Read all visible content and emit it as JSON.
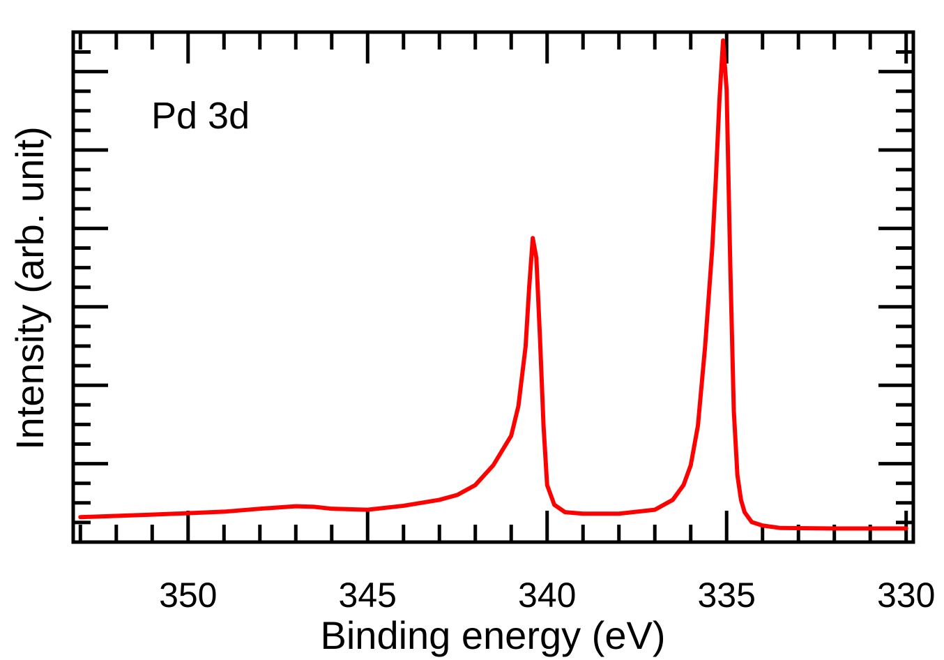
{
  "chart_data": {
    "type": "line",
    "title": "",
    "xlabel": "Binding energy (eV)",
    "ylabel": "Intensity (arb. unit)",
    "annotation": "Pd 3d",
    "x_reversed": true,
    "xlim": [
      353.2,
      329.8
    ],
    "ylim": [
      0,
      100
    ],
    "x_major_ticks": [
      350,
      345,
      340,
      335,
      330
    ],
    "x_tick_labels": [
      "350",
      "345",
      "340",
      "335",
      "330"
    ],
    "x_minor_step": 1,
    "y_ticks_labeled": false,
    "grid": false,
    "series": [
      {
        "name": "Pd 3d spectrum",
        "color": "#ff0000",
        "x": [
          353.0,
          351.0,
          349.0,
          348.0,
          347.0,
          346.5,
          346.0,
          345.0,
          344.0,
          343.0,
          342.5,
          342.0,
          341.5,
          341.0,
          340.8,
          340.6,
          340.5,
          340.4,
          340.3,
          340.2,
          340.1,
          340.0,
          339.8,
          339.5,
          339.0,
          338.0,
          337.0,
          336.5,
          336.2,
          336.0,
          335.8,
          335.6,
          335.4,
          335.3,
          335.2,
          335.1,
          335.0,
          334.9,
          334.8,
          334.7,
          334.6,
          334.5,
          334.3,
          334.0,
          333.5,
          332.0,
          330.0
        ],
        "y": [
          3.5,
          4.0,
          4.6,
          5.2,
          5.7,
          5.6,
          5.2,
          5.0,
          5.8,
          7.0,
          8.0,
          10.0,
          14.0,
          20.0,
          26.0,
          38.0,
          50.0,
          60.0,
          56.0,
          40.0,
          22.0,
          10.0,
          6.0,
          4.5,
          4.2,
          4.2,
          5.0,
          7.0,
          10.0,
          14.0,
          22.0,
          38.0,
          58.0,
          72.0,
          88.0,
          100.0,
          90.0,
          55.0,
          25.0,
          12.0,
          7.0,
          4.5,
          2.5,
          1.8,
          1.3,
          1.2,
          1.2
        ]
      }
    ]
  }
}
